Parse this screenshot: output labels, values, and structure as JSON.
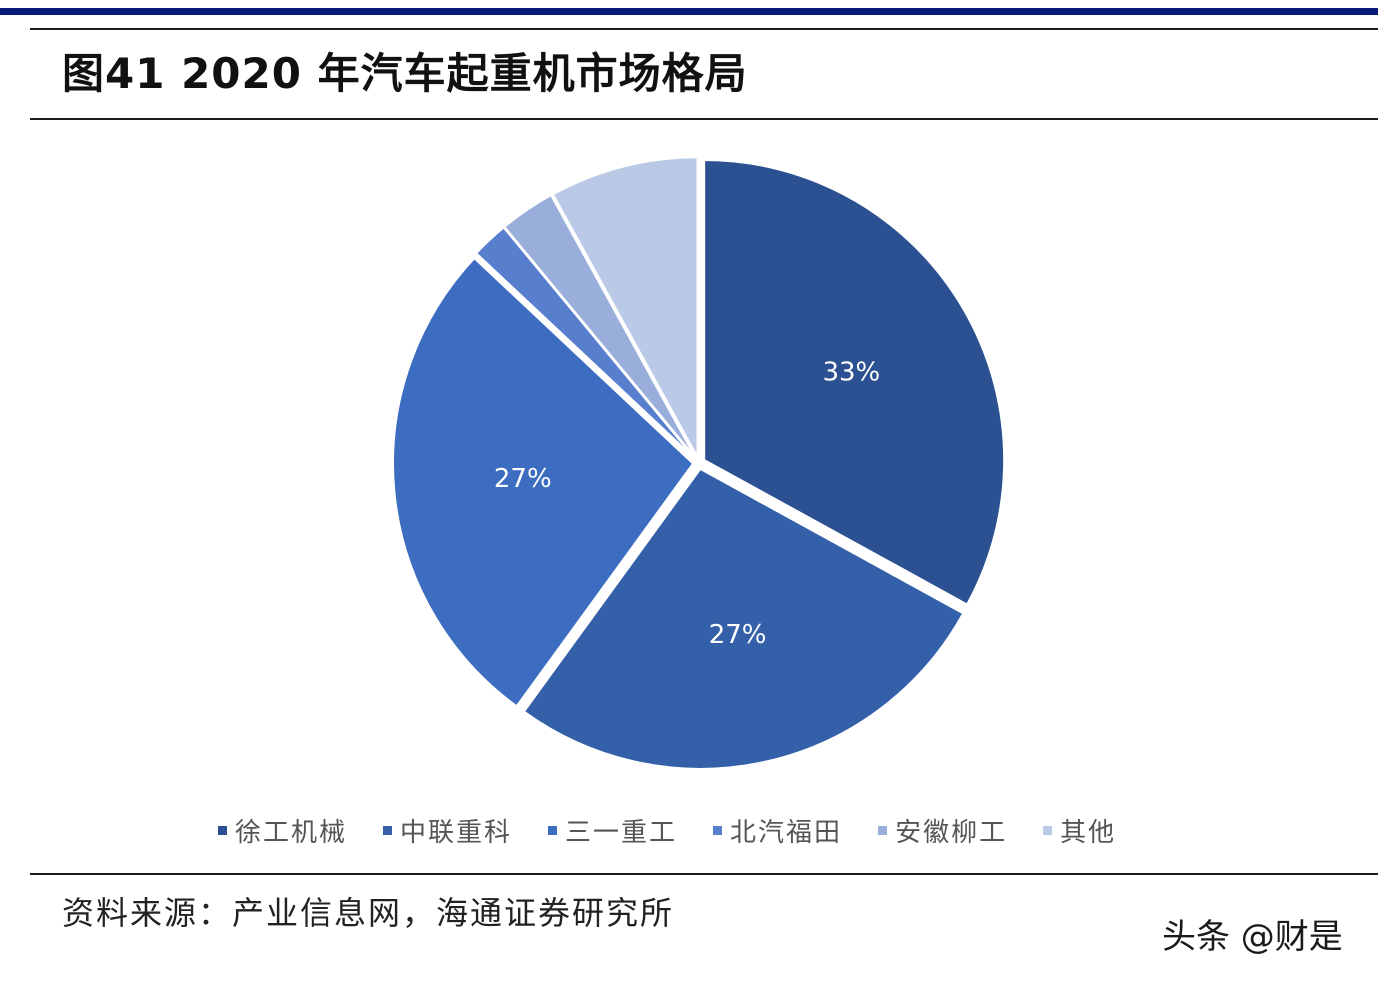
{
  "title": "图41 2020 年汽车起重机市场格局",
  "source": "资料来源：产业信息网，海通证券研究所",
  "watermark": "头条 @财是",
  "chart_data": {
    "type": "pie",
    "title": "图41 2020 年汽车起重机市场格局",
    "categories": [
      "徐工机械",
      "中联重科",
      "三一重工",
      "北汽福田",
      "安徽柳工",
      "其他"
    ],
    "values": [
      33,
      27,
      27,
      2,
      3,
      8
    ],
    "data_labels": [
      "33%",
      "27%",
      "27%",
      "",
      "",
      ""
    ],
    "colors": [
      "#2c5192",
      "#3460aa",
      "#3d6dc0",
      "#587fce",
      "#9aaedc",
      "#bac9e6"
    ],
    "start_angle_deg": 0,
    "direction": "clockwise",
    "legend_position": "bottom"
  }
}
